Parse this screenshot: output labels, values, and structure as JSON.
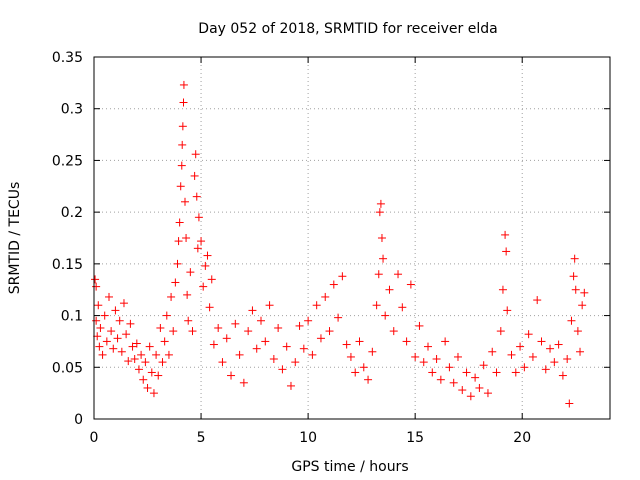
{
  "chart_data": {
    "type": "scatter",
    "title": "Day 052 of 2018, SRMTID for receiver elda",
    "xlabel": "GPS time / hours",
    "ylabel": "SRMTID / TECUs",
    "xlim": [
      0,
      24.1
    ],
    "ylim": [
      0,
      0.35
    ],
    "x_ticks": [
      0,
      5,
      10,
      15,
      20
    ],
    "x_tick_labels": [
      "0",
      "5",
      "10",
      "15",
      "20"
    ],
    "y_ticks": [
      0,
      0.05,
      0.1,
      0.15,
      0.2,
      0.25,
      0.3,
      0.35
    ],
    "y_tick_labels": [
      "0",
      "0.05",
      "0.1",
      "0.15",
      "0.2",
      "0.25",
      "0.3",
      "0.35"
    ],
    "grid": true,
    "marker": "+",
    "series": [
      {
        "name": "SRMTID",
        "color": "#ff0000",
        "points": [
          [
            0.05,
            0.135
          ],
          [
            0.1,
            0.128
          ],
          [
            0.1,
            0.095
          ],
          [
            0.15,
            0.08
          ],
          [
            0.2,
            0.11
          ],
          [
            0.25,
            0.07
          ],
          [
            0.3,
            0.088
          ],
          [
            0.4,
            0.062
          ],
          [
            0.5,
            0.1
          ],
          [
            0.6,
            0.075
          ],
          [
            0.7,
            0.118
          ],
          [
            0.8,
            0.085
          ],
          [
            0.9,
            0.068
          ],
          [
            1.0,
            0.105
          ],
          [
            1.1,
            0.078
          ],
          [
            1.2,
            0.095
          ],
          [
            1.3,
            0.065
          ],
          [
            1.4,
            0.112
          ],
          [
            1.5,
            0.082
          ],
          [
            1.6,
            0.056
          ],
          [
            1.7,
            0.092
          ],
          [
            1.8,
            0.07
          ],
          [
            1.9,
            0.058
          ],
          [
            2.0,
            0.073
          ],
          [
            2.1,
            0.048
          ],
          [
            2.2,
            0.062
          ],
          [
            2.3,
            0.038
          ],
          [
            2.4,
            0.055
          ],
          [
            2.5,
            0.03
          ],
          [
            2.6,
            0.07
          ],
          [
            2.7,
            0.045
          ],
          [
            2.8,
            0.025
          ],
          [
            2.9,
            0.062
          ],
          [
            3.0,
            0.042
          ],
          [
            3.1,
            0.088
          ],
          [
            3.2,
            0.055
          ],
          [
            3.3,
            0.075
          ],
          [
            3.4,
            0.1
          ],
          [
            3.5,
            0.062
          ],
          [
            3.6,
            0.118
          ],
          [
            3.7,
            0.085
          ],
          [
            3.8,
            0.132
          ],
          [
            3.9,
            0.15
          ],
          [
            3.95,
            0.172
          ],
          [
            4.0,
            0.19
          ],
          [
            4.05,
            0.225
          ],
          [
            4.1,
            0.245
          ],
          [
            4.12,
            0.265
          ],
          [
            4.15,
            0.283
          ],
          [
            4.18,
            0.306
          ],
          [
            4.2,
            0.323
          ],
          [
            4.25,
            0.21
          ],
          [
            4.3,
            0.175
          ],
          [
            4.35,
            0.12
          ],
          [
            4.4,
            0.095
          ],
          [
            4.5,
            0.142
          ],
          [
            4.6,
            0.085
          ],
          [
            4.7,
            0.235
          ],
          [
            4.75,
            0.256
          ],
          [
            4.8,
            0.215
          ],
          [
            4.85,
            0.165
          ],
          [
            4.9,
            0.195
          ],
          [
            5.0,
            0.172
          ],
          [
            5.1,
            0.128
          ],
          [
            5.2,
            0.148
          ],
          [
            5.3,
            0.158
          ],
          [
            5.4,
            0.108
          ],
          [
            5.5,
            0.135
          ],
          [
            5.6,
            0.072
          ],
          [
            5.8,
            0.088
          ],
          [
            6.0,
            0.055
          ],
          [
            6.2,
            0.078
          ],
          [
            6.4,
            0.042
          ],
          [
            6.6,
            0.092
          ],
          [
            6.8,
            0.062
          ],
          [
            7.0,
            0.035
          ],
          [
            7.2,
            0.085
          ],
          [
            7.4,
            0.105
          ],
          [
            7.6,
            0.068
          ],
          [
            7.8,
            0.095
          ],
          [
            8.0,
            0.075
          ],
          [
            8.2,
            0.11
          ],
          [
            8.4,
            0.058
          ],
          [
            8.6,
            0.088
          ],
          [
            8.8,
            0.048
          ],
          [
            9.0,
            0.07
          ],
          [
            9.2,
            0.032
          ],
          [
            9.4,
            0.055
          ],
          [
            9.6,
            0.09
          ],
          [
            9.8,
            0.068
          ],
          [
            10.0,
            0.095
          ],
          [
            10.2,
            0.062
          ],
          [
            10.4,
            0.11
          ],
          [
            10.6,
            0.078
          ],
          [
            10.8,
            0.118
          ],
          [
            11.0,
            0.085
          ],
          [
            11.2,
            0.13
          ],
          [
            11.4,
            0.098
          ],
          [
            11.6,
            0.138
          ],
          [
            11.8,
            0.072
          ],
          [
            12.0,
            0.06
          ],
          [
            12.2,
            0.045
          ],
          [
            12.4,
            0.075
          ],
          [
            12.6,
            0.05
          ],
          [
            12.8,
            0.038
          ],
          [
            13.0,
            0.065
          ],
          [
            13.2,
            0.11
          ],
          [
            13.3,
            0.14
          ],
          [
            13.35,
            0.2
          ],
          [
            13.4,
            0.208
          ],
          [
            13.45,
            0.175
          ],
          [
            13.5,
            0.155
          ],
          [
            13.6,
            0.1
          ],
          [
            13.8,
            0.125
          ],
          [
            14.0,
            0.085
          ],
          [
            14.2,
            0.14
          ],
          [
            14.4,
            0.108
          ],
          [
            14.6,
            0.075
          ],
          [
            14.8,
            0.13
          ],
          [
            15.0,
            0.06
          ],
          [
            15.2,
            0.09
          ],
          [
            15.4,
            0.055
          ],
          [
            15.6,
            0.07
          ],
          [
            15.8,
            0.045
          ],
          [
            16.0,
            0.058
          ],
          [
            16.2,
            0.038
          ],
          [
            16.4,
            0.075
          ],
          [
            16.6,
            0.05
          ],
          [
            16.8,
            0.035
          ],
          [
            17.0,
            0.06
          ],
          [
            17.2,
            0.028
          ],
          [
            17.4,
            0.045
          ],
          [
            17.6,
            0.022
          ],
          [
            17.8,
            0.04
          ],
          [
            18.0,
            0.03
          ],
          [
            18.2,
            0.052
          ],
          [
            18.4,
            0.025
          ],
          [
            18.6,
            0.065
          ],
          [
            18.8,
            0.045
          ],
          [
            19.0,
            0.085
          ],
          [
            19.1,
            0.125
          ],
          [
            19.2,
            0.178
          ],
          [
            19.25,
            0.162
          ],
          [
            19.3,
            0.105
          ],
          [
            19.5,
            0.062
          ],
          [
            19.7,
            0.045
          ],
          [
            19.9,
            0.07
          ],
          [
            20.1,
            0.05
          ],
          [
            20.3,
            0.082
          ],
          [
            20.5,
            0.06
          ],
          [
            20.7,
            0.115
          ],
          [
            20.9,
            0.075
          ],
          [
            21.1,
            0.048
          ],
          [
            21.3,
            0.068
          ],
          [
            21.5,
            0.055
          ],
          [
            21.7,
            0.072
          ],
          [
            21.9,
            0.042
          ],
          [
            22.1,
            0.058
          ],
          [
            22.2,
            0.015
          ],
          [
            22.3,
            0.095
          ],
          [
            22.4,
            0.138
          ],
          [
            22.45,
            0.155
          ],
          [
            22.5,
            0.125
          ],
          [
            22.6,
            0.085
          ],
          [
            22.7,
            0.065
          ],
          [
            22.8,
            0.11
          ],
          [
            22.9,
            0.122
          ]
        ]
      }
    ]
  }
}
